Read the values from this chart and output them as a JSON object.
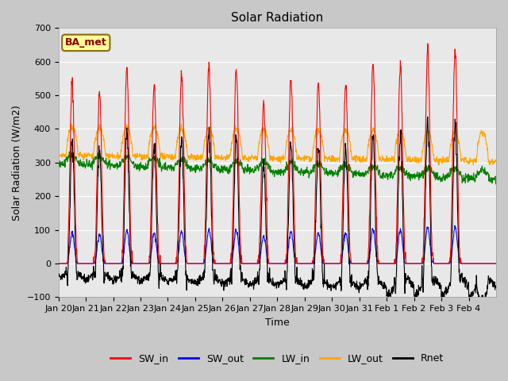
{
  "title": "Solar Radiation",
  "ylabel": "Solar Radiation (W/m2)",
  "xlabel": "Time",
  "ylim": [
    -100,
    700
  ],
  "colors": {
    "SW_in": "red",
    "SW_out": "blue",
    "LW_in": "green",
    "LW_out": "orange",
    "Rnet": "black"
  },
  "annotation_text": "BA_met",
  "annotation_bg": "#ffff99",
  "annotation_border": "#8B6914",
  "x_tick_labels": [
    "Jan 20",
    "Jan 21",
    "Jan 22",
    "Jan 23",
    "Jan 24",
    "Jan 25",
    "Jan 26",
    "Jan 27",
    "Jan 28",
    "Jan 29",
    "Jan 30",
    "Jan 31",
    "Feb 1",
    "Feb 2",
    "Feb 3",
    "Feb 4"
  ],
  "n_days": 16,
  "steps_per_day": 96,
  "figsize": [
    6.4,
    4.8
  ],
  "dpi": 100
}
